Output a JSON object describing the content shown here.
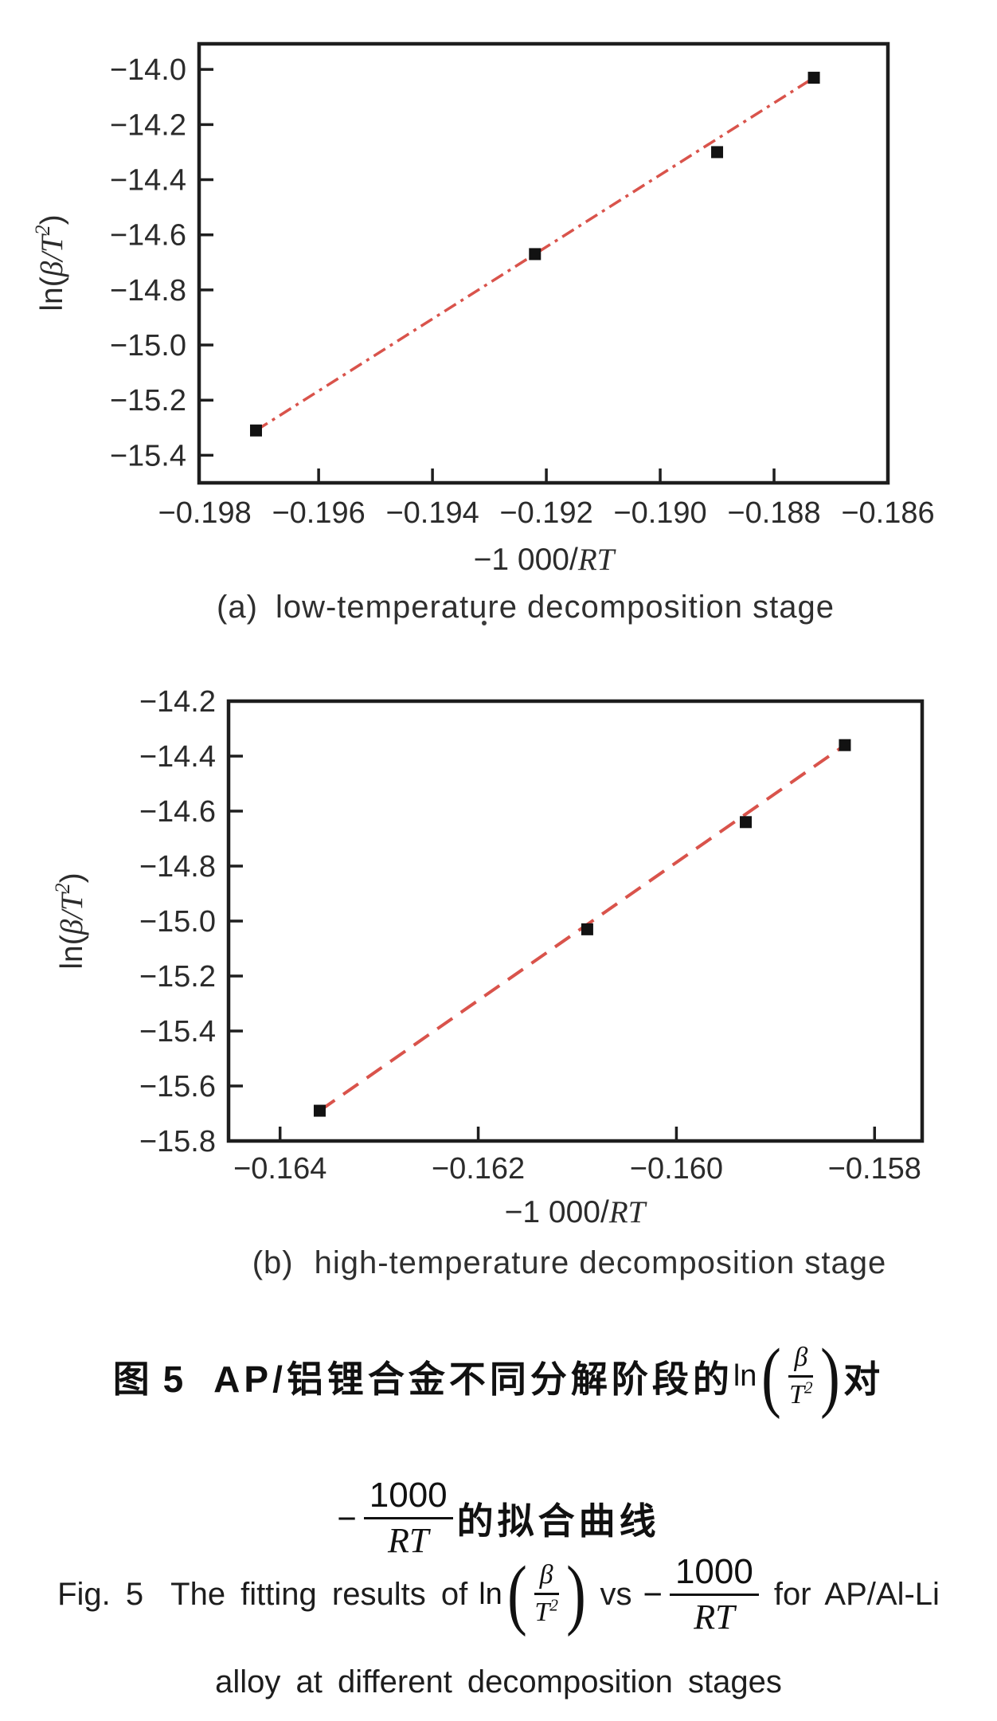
{
  "figure": {
    "background": "#ffffff",
    "accent_line_color": "#d9534b",
    "text_color": "#1d1d1d"
  },
  "chart_data": [
    {
      "type": "scatter",
      "title": "(a) low-temperature decomposition stage",
      "subcaption_tag": "(a)",
      "subcaption_text": "low-temperature decomposition stage",
      "xlabel": "−1 000/RT",
      "xlabel_prefix": "−1 000/",
      "xlabel_italic": "RT",
      "ylabel": "ln(β/T²)",
      "ylabel_pre": "ln(",
      "ylabel_italic": "β/T",
      "ylabel_sup": "2",
      "ylabel_post": ")",
      "xlim": [
        -0.1981,
        -0.186
      ],
      "ylim": [
        -15.5,
        -13.907
      ],
      "x_ticks": [
        -0.198,
        -0.196,
        -0.194,
        -0.192,
        -0.19,
        -0.188,
        -0.186
      ],
      "x_tick_labels": [
        "−0.198",
        "−0.196",
        "−0.194",
        "−0.192",
        "−0.190",
        "−0.188",
        "−0.186"
      ],
      "y_ticks": [
        -14.0,
        -14.2,
        -14.4,
        -14.6,
        -14.8,
        -15.0,
        -15.2,
        -15.4
      ],
      "y_tick_labels": [
        "−14.0",
        "−14.2",
        "−14.4",
        "−14.6",
        "−14.8",
        "−15.0",
        "−15.2",
        "−15.4"
      ],
      "points": [
        [
          -0.1971,
          -15.31
        ],
        [
          -0.1922,
          -14.67
        ],
        [
          -0.189,
          -14.3
        ],
        [
          -0.1873,
          -14.03
        ]
      ],
      "fit_line": {
        "x1": -0.1971,
        "y1": -15.31,
        "x2": -0.1873,
        "y2": -14.03,
        "style": "dash-dot",
        "color": "#d9534b"
      },
      "grid": false,
      "legend": null
    },
    {
      "type": "scatter",
      "title": "(b) high-temperature decomposition stage",
      "subcaption_tag": "(b)",
      "subcaption_text": "high-temperature decomposition stage",
      "xlabel": "−1 000/RT",
      "xlabel_prefix": "−1 000/",
      "xlabel_italic": "RT",
      "ylabel": "ln(β/T²)",
      "ylabel_pre": "ln(",
      "ylabel_italic": "β/T",
      "ylabel_sup": "2",
      "ylabel_post": ")",
      "xlim": [
        -0.16452,
        -0.15752
      ],
      "ylim": [
        -15.8,
        -14.2
      ],
      "x_ticks": [
        -0.164,
        -0.162,
        -0.16,
        -0.158
      ],
      "x_tick_labels": [
        "−0.164",
        "−0.162",
        "−0.160",
        "−0.158"
      ],
      "y_ticks": [
        -14.2,
        -14.4,
        -14.6,
        -14.8,
        -15.0,
        -15.2,
        -15.4,
        -15.6,
        -15.8
      ],
      "y_tick_labels": [
        "−14.2",
        "−14.4",
        "−14.6",
        "−14.8",
        "−15.0",
        "−15.2",
        "−15.4",
        "−15.6",
        "−15.8"
      ],
      "points": [
        [
          -0.1636,
          -15.69
        ],
        [
          -0.1609,
          -15.03
        ],
        [
          -0.1593,
          -14.64
        ],
        [
          -0.1583,
          -14.36
        ]
      ],
      "fit_line": {
        "x1": -0.1636,
        "y1": -15.69,
        "x2": -0.1583,
        "y2": -14.36,
        "style": "dashed",
        "color": "#d9534b"
      },
      "grid": false,
      "legend": null
    }
  ],
  "captions": {
    "zh": {
      "fig_label": "图 5",
      "line1_text": "AP/铝锂合金不同分解阶段的",
      "ln": "ln",
      "beta": "β",
      "T": "T",
      "sup": "2",
      "dui": "对",
      "minus": "−",
      "frac_num": "1000",
      "frac_den": "RT",
      "line2_text": "的拟合曲线"
    },
    "en": {
      "fig_label": "Fig. 5",
      "part1": "The fitting results of",
      "ln": "ln",
      "beta": "β",
      "T": "T",
      "sup": "2",
      "vs": "vs",
      "minus": "−",
      "frac_num": "1000",
      "frac_den": "RT",
      "part2": "for AP/Al-Li",
      "line2": "alloy at different decomposition stages"
    }
  }
}
